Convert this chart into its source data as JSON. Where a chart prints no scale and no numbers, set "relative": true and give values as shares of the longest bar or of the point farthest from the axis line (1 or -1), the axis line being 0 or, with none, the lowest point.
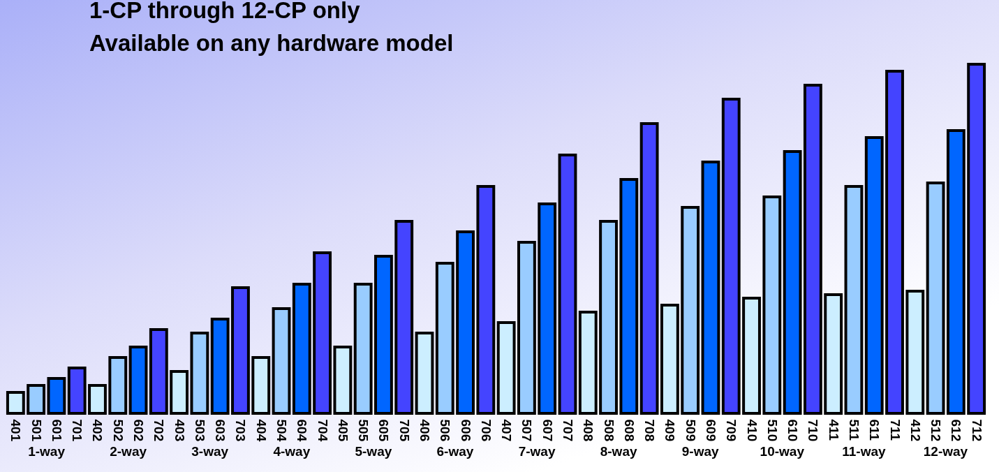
{
  "chart_data": {
    "type": "bar",
    "title": "1-CP through 12-CP only",
    "subtitle": "Available on any hardware model",
    "relative": true,
    "categories": [
      "401",
      "501",
      "601",
      "701",
      "402",
      "502",
      "602",
      "702",
      "403",
      "503",
      "603",
      "703",
      "404",
      "504",
      "604",
      "704",
      "405",
      "505",
      "605",
      "705",
      "406",
      "506",
      "606",
      "706",
      "407",
      "507",
      "607",
      "707",
      "408",
      "508",
      "608",
      "708",
      "409",
      "509",
      "609",
      "709",
      "410",
      "510",
      "610",
      "710",
      "411",
      "511",
      "611",
      "711",
      "412",
      "512",
      "612",
      "712"
    ],
    "values": [
      0.06,
      0.08,
      0.1,
      0.13,
      0.08,
      0.16,
      0.19,
      0.24,
      0.12,
      0.23,
      0.27,
      0.36,
      0.16,
      0.3,
      0.37,
      0.46,
      0.19,
      0.37,
      0.45,
      0.55,
      0.23,
      0.43,
      0.52,
      0.65,
      0.26,
      0.49,
      0.6,
      0.74,
      0.29,
      0.55,
      0.67,
      0.83,
      0.31,
      0.59,
      0.72,
      0.9,
      0.33,
      0.62,
      0.75,
      0.94,
      0.34,
      0.65,
      0.79,
      0.98,
      0.35,
      0.66,
      0.81,
      1
    ],
    "colors": [
      "#cceeff",
      "#99ccff",
      "#0066ff",
      "#4444ff",
      "#cceeff",
      "#99ccff",
      "#0066ff",
      "#4444ff",
      "#cceeff",
      "#99ccff",
      "#0066ff",
      "#4444ff",
      "#cceeff",
      "#99ccff",
      "#0066ff",
      "#4444ff",
      "#cceeff",
      "#99ccff",
      "#0066ff",
      "#4444ff",
      "#cceeff",
      "#99ccff",
      "#0066ff",
      "#4444ff",
      "#cceeff",
      "#99ccff",
      "#0066ff",
      "#4444ff",
      "#cceeff",
      "#99ccff",
      "#0066ff",
      "#4444ff",
      "#cceeff",
      "#99ccff",
      "#0066ff",
      "#4444ff",
      "#cceeff",
      "#99ccff",
      "#0066ff",
      "#4444ff",
      "#cceeff",
      "#99ccff",
      "#0066ff",
      "#4444ff",
      "#cceeff",
      "#99ccff",
      "#0066ff",
      "#4444ff"
    ],
    "annotations": [
      "1-way",
      "2-way",
      "3-way",
      "4-way",
      "5-way",
      "6-way",
      "7-way",
      "8-way",
      "9-way",
      "10-way",
      "11-way",
      "12-way"
    ]
  }
}
